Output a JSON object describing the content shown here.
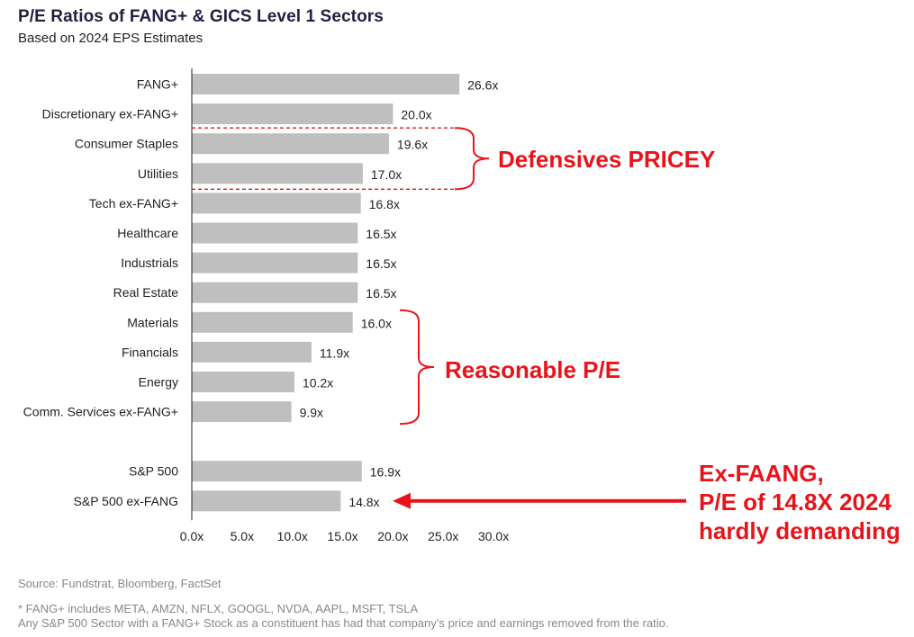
{
  "title": "P/E Ratios of FANG+ & GICS Level 1 Sectors",
  "subtitle": "Based on 2024 EPS Estimates",
  "chart_data": {
    "type": "bar",
    "orientation": "horizontal",
    "categories": [
      "FANG+",
      "Discretionary ex-FANG+",
      "Consumer Staples",
      "Utilities",
      "Tech ex-FANG+",
      "Healthcare",
      "Industrials",
      "Real Estate",
      "Materials",
      "Financials",
      "Energy",
      "Comm. Services ex-FANG+",
      "S&P 500",
      "S&P 500 ex-FANG"
    ],
    "values": [
      26.6,
      20.0,
      19.6,
      17.0,
      16.8,
      16.5,
      16.5,
      16.5,
      16.0,
      11.9,
      10.2,
      9.9,
      16.9,
      14.8
    ],
    "data_labels": [
      "26.6x",
      "20.0x",
      "19.6x",
      "17.0x",
      "16.8x",
      "16.5x",
      "16.5x",
      "16.5x",
      "16.0x",
      "11.9x",
      "10.2x",
      "9.9x",
      "16.9x",
      "14.8x"
    ],
    "xlim": [
      0,
      30
    ],
    "x_ticks": [
      0,
      5,
      10,
      15,
      20,
      25,
      30
    ],
    "x_tick_labels": [
      "0.0x",
      "5.0x",
      "10.0x",
      "15.0x",
      "20.0x",
      "25.0x",
      "30.0x"
    ],
    "xlabel": "",
    "ylabel": "",
    "grid": false,
    "bar_color": "#bfbfbf",
    "annotation_color": "#e8141b"
  },
  "callouts": {
    "defensives": "Defensives PRICEY",
    "reasonable": "Reasonable P/E",
    "exfaang": [
      "Ex-FAANG,",
      "P/E of 14.8X 2024",
      "hardly demanding"
    ]
  },
  "source": "Source: Fundstrat, Bloomberg, FactSet",
  "notes": [
    "* FANG+ includes META, AMZN, NFLX, GOOGL, NVDA, AAPL, MSFT, TSLA",
    "Any S&P 500 Sector with a FANG+ Stock as a constituent has had that company’s price and earnings removed from the ratio."
  ]
}
